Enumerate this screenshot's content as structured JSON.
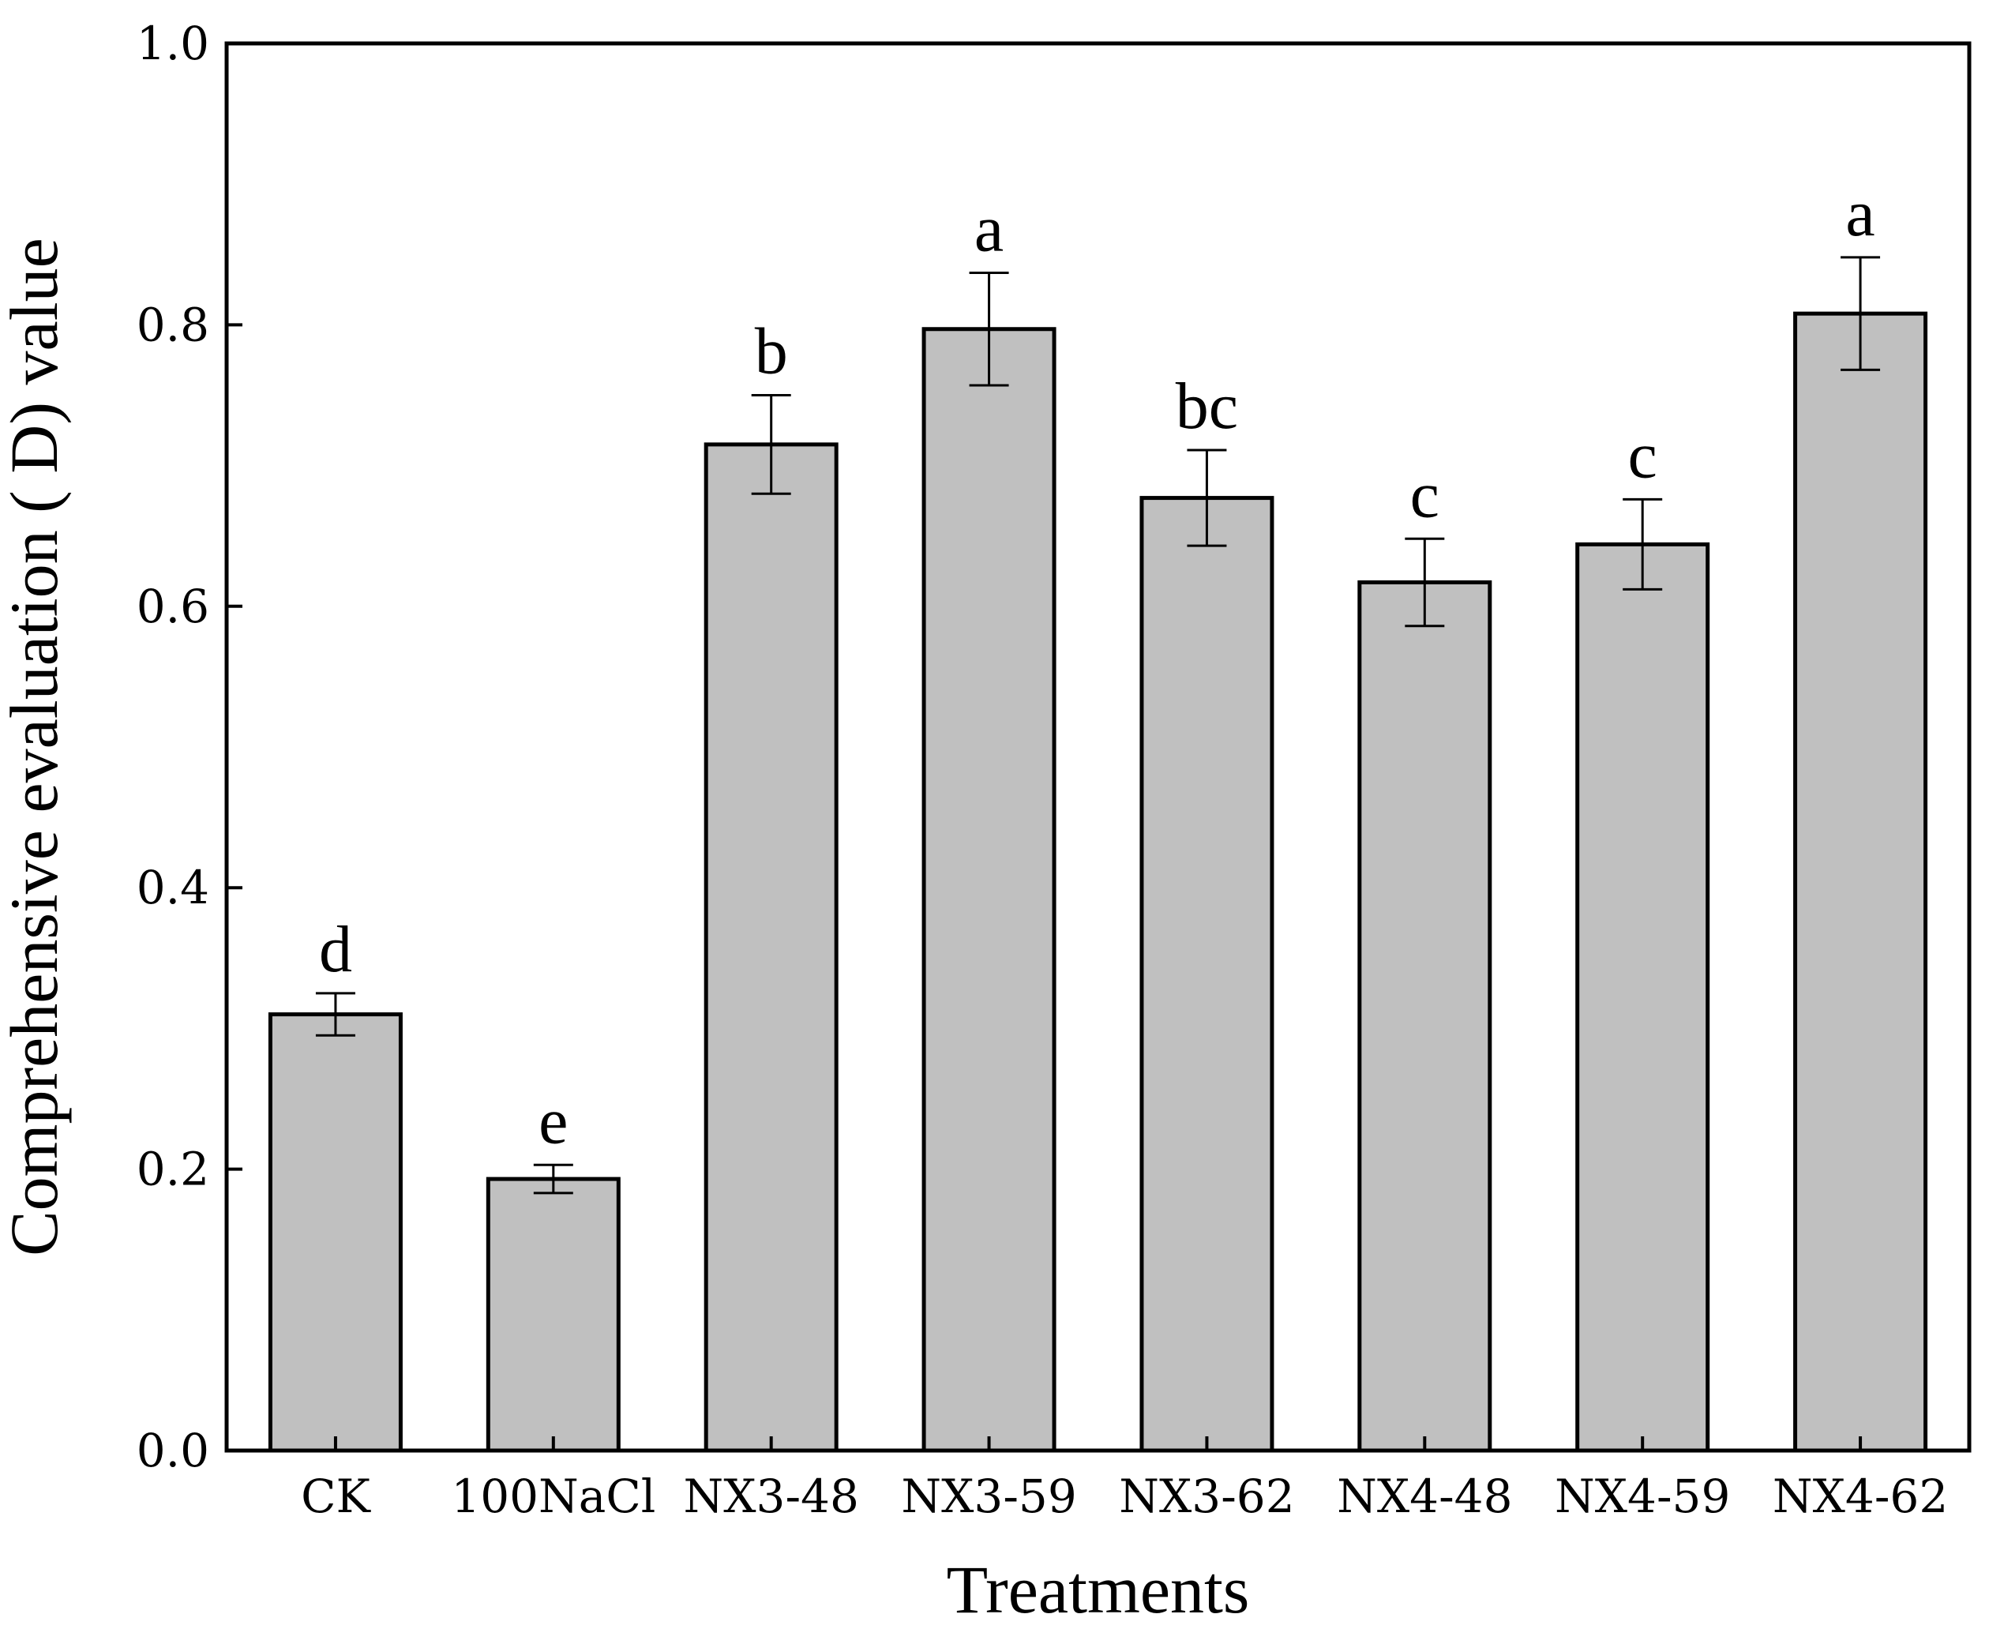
{
  "chart_data": {
    "type": "bar",
    "title": "",
    "xlabel": "Treatments",
    "ylabel": "Comprehensive evaluation ( D) value",
    "ylim": [
      0,
      1.0
    ],
    "yticks": [
      "0.0",
      "0.2",
      "0.4",
      "0.6",
      "0.8",
      "1.0"
    ],
    "ytick_values": [
      0.0,
      0.2,
      0.4,
      0.6,
      0.8,
      1.0
    ],
    "categories": [
      "CK",
      "100NaCl",
      "NX3-48",
      "NX3-59",
      "NX3-62",
      "NX4-48",
      "NX4-59",
      "NX4-62"
    ],
    "values": [
      0.31,
      0.193,
      0.715,
      0.797,
      0.677,
      0.617,
      0.644,
      0.808
    ],
    "errors": [
      0.015,
      0.01,
      0.035,
      0.04,
      0.034,
      0.031,
      0.032,
      0.04
    ],
    "significance": [
      "d",
      "e",
      "b",
      "a",
      "bc",
      "c",
      "c",
      "a"
    ],
    "bar_color": "#c0c0c0",
    "edge_color": "#000000",
    "grid": false,
    "legend": "none"
  }
}
